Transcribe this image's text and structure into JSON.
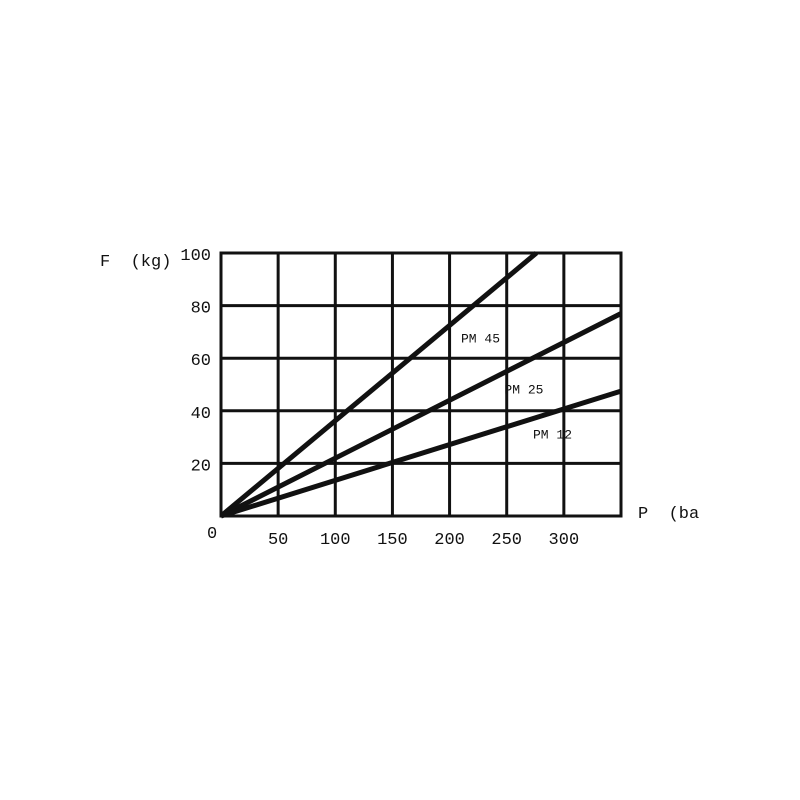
{
  "chart_data": {
    "type": "line",
    "title": "",
    "xlabel": "P  (ba",
    "ylabel": "F  (kg)",
    "origin_label": "0",
    "xlim": [
      0,
      350
    ],
    "ylim": [
      0,
      100
    ],
    "grid": true,
    "x_ticks": [
      50,
      100,
      150,
      200,
      250,
      300
    ],
    "y_ticks": [
      20,
      40,
      60,
      80,
      100
    ],
    "x_gridlines": [
      50,
      100,
      150,
      200,
      250,
      300
    ],
    "y_gridlines": [
      20,
      40,
      60,
      80
    ],
    "line_color": "#111111",
    "series": [
      {
        "name": "PM 45",
        "x": [
          0,
          276
        ],
        "y": [
          0,
          100
        ]
      },
      {
        "name": "PM 25",
        "x": [
          0,
          350
        ],
        "y": [
          0,
          77
        ]
      },
      {
        "name": "PM 12",
        "x": [
          0,
          350
        ],
        "y": [
          0,
          47.5
        ]
      }
    ],
    "annotations": [
      {
        "text": "PM 45",
        "x": 210,
        "y": 66
      },
      {
        "text": "PM 25",
        "x": 248,
        "y": 46.5
      },
      {
        "text": "PM 12",
        "x": 273,
        "y": 29.5
      }
    ]
  }
}
